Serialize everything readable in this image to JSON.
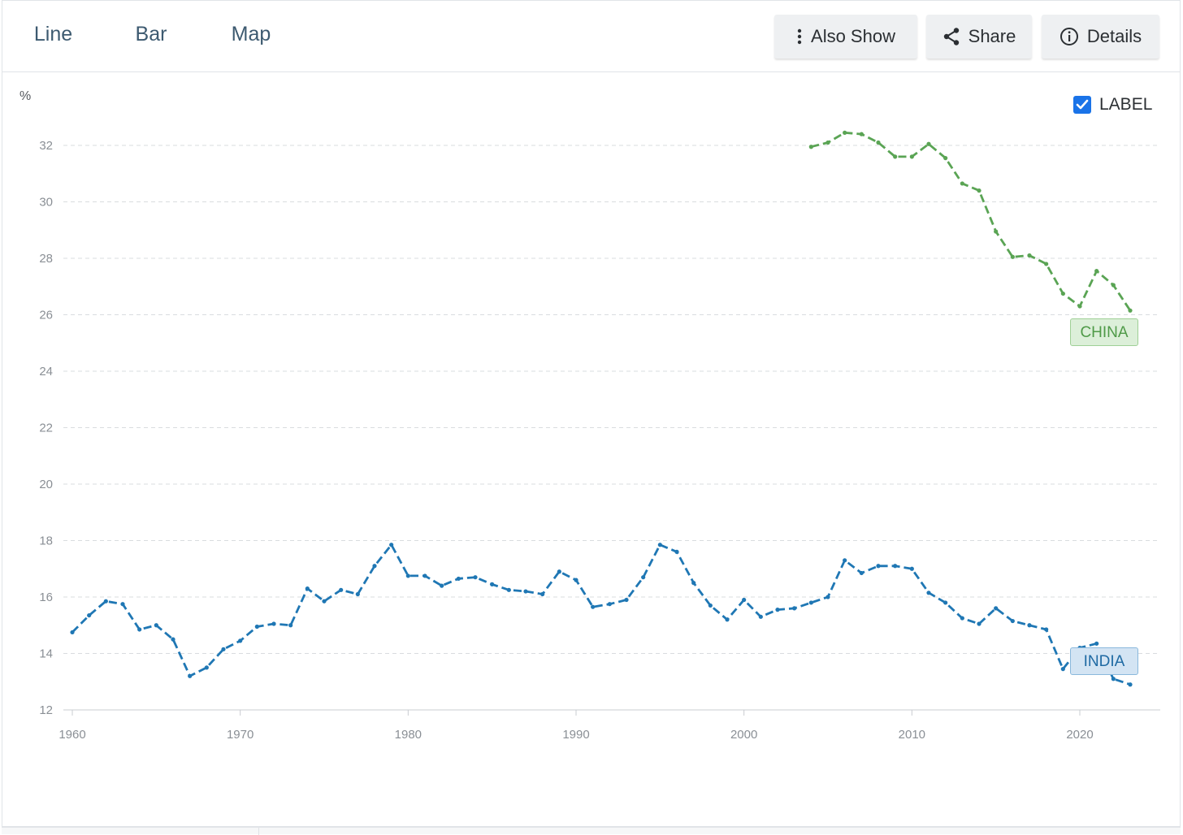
{
  "tabs": [
    {
      "label": "Line",
      "active": true
    },
    {
      "label": "Bar",
      "active": false
    },
    {
      "label": "Map",
      "active": false
    }
  ],
  "toolbar": {
    "also_show": {
      "label": "Also Show",
      "icon": "vertical-dots-icon"
    },
    "share": {
      "label": "Share",
      "icon": "share-icon"
    },
    "details": {
      "label": "Details",
      "icon": "info-icon"
    }
  },
  "label_toggle": {
    "label": "LABEL",
    "checked": true,
    "color": "#1a73e8"
  },
  "chart_data": {
    "type": "line",
    "ylabel": "%",
    "ylim": [
      12,
      32
    ],
    "yticks": [
      12,
      14,
      16,
      18,
      20,
      22,
      24,
      26,
      28,
      30,
      32
    ],
    "xlim": [
      1960,
      2023
    ],
    "xticks": [
      1960,
      1970,
      1980,
      1990,
      2000,
      2010,
      2020
    ],
    "grid": true,
    "series": [
      {
        "name": "INDIA",
        "color": "#1f77b4",
        "tag_bg": "#d3e4f3",
        "tag_border": "#8ab8dc",
        "tag_color": "#1f6aa3",
        "x": [
          1960,
          1961,
          1962,
          1963,
          1964,
          1965,
          1966,
          1967,
          1968,
          1969,
          1970,
          1971,
          1972,
          1973,
          1974,
          1975,
          1976,
          1977,
          1978,
          1979,
          1980,
          1981,
          1982,
          1983,
          1984,
          1985,
          1986,
          1987,
          1988,
          1989,
          1990,
          1991,
          1992,
          1993,
          1994,
          1995,
          1996,
          1997,
          1998,
          1999,
          2000,
          2001,
          2002,
          2003,
          2004,
          2005,
          2006,
          2007,
          2008,
          2009,
          2010,
          2011,
          2012,
          2013,
          2014,
          2015,
          2016,
          2017,
          2018,
          2019,
          2020,
          2021,
          2022,
          2023
        ],
        "values": [
          14.75,
          15.35,
          15.85,
          15.75,
          14.85,
          15.0,
          14.5,
          13.2,
          13.5,
          14.15,
          14.45,
          14.95,
          15.05,
          15.0,
          16.3,
          15.85,
          16.25,
          16.1,
          17.1,
          17.85,
          16.75,
          16.75,
          16.4,
          16.65,
          16.7,
          16.45,
          16.25,
          16.2,
          16.1,
          16.9,
          16.6,
          15.65,
          15.75,
          15.9,
          16.7,
          17.85,
          17.6,
          16.5,
          15.7,
          15.2,
          15.9,
          15.3,
          15.55,
          15.6,
          15.8,
          16.0,
          17.3,
          16.85,
          17.1,
          17.1,
          17.0,
          16.15,
          15.8,
          15.25,
          15.05,
          15.6,
          15.15,
          15.0,
          14.85,
          13.45,
          14.2,
          14.35,
          13.1,
          12.9
        ]
      },
      {
        "name": "CHINA",
        "color": "#5aa454",
        "tag_bg": "#dcefd9",
        "tag_border": "#9fd096",
        "tag_color": "#4f9a48",
        "x": [
          2004,
          2005,
          2006,
          2007,
          2008,
          2009,
          2010,
          2011,
          2012,
          2013,
          2014,
          2015,
          2016,
          2017,
          2018,
          2019,
          2020,
          2021,
          2022,
          2023
        ],
        "values": [
          31.95,
          32.1,
          32.45,
          32.4,
          32.1,
          31.6,
          31.6,
          32.05,
          31.55,
          30.65,
          30.4,
          28.95,
          28.05,
          28.1,
          27.8,
          26.75,
          26.3,
          27.55,
          27.05,
          26.15
        ]
      }
    ]
  }
}
